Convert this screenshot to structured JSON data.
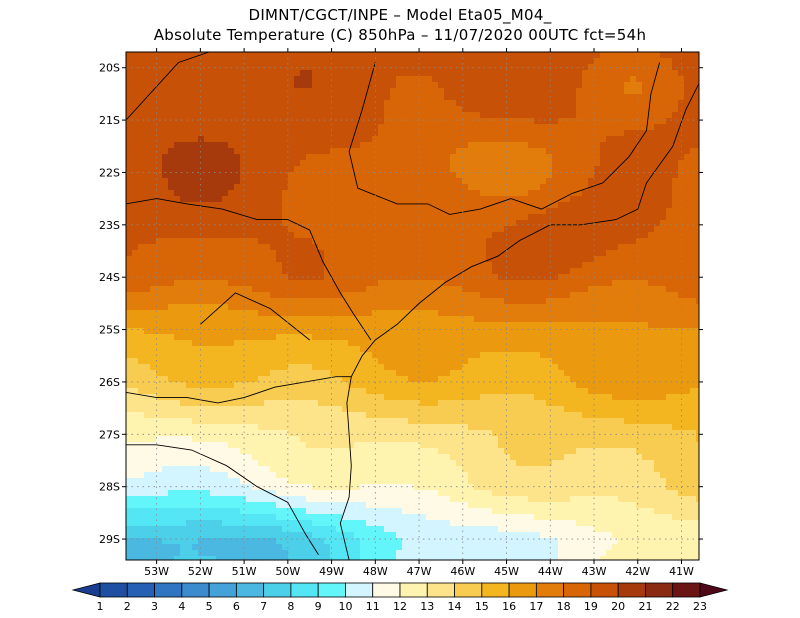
{
  "header": {
    "line1": "DIMNT/CGCT/INPE  –   Model Eta05_M04_",
    "line2": "Absolute Temperature (C) 850hPa  –   11/07/2020 00UTC fct=54h"
  },
  "chart_data": {
    "type": "heatmap",
    "title": "DIMNT/CGCT/INPE – Model Eta05_M04_",
    "subtitle": "Absolute Temperature (C) 850hPa – 11/07/2020 00UTC fct=54h",
    "xlabel": "",
    "ylabel": "",
    "x_ticks": [
      "53W",
      "52W",
      "51W",
      "50W",
      "49W",
      "48W",
      "47W",
      "46W",
      "45W",
      "44W",
      "43W",
      "42W",
      "41W"
    ],
    "y_ticks": [
      "20S",
      "21S",
      "22S",
      "23S",
      "24S",
      "25S",
      "26S",
      "27S",
      "28S",
      "29S"
    ],
    "lon_range": [
      -53.7,
      -40.6
    ],
    "lat_range": [
      -29.4,
      -19.7
    ],
    "grid": true,
    "colorbar": {
      "levels": [
        1,
        2,
        3,
        4,
        5,
        6,
        7,
        8,
        9,
        10,
        11,
        12,
        13,
        14,
        15,
        16,
        17,
        18,
        19,
        20,
        21,
        22,
        23
      ],
      "colors": [
        "#1a3d8f",
        "#1f4fa0",
        "#2660b4",
        "#2f75c2",
        "#3a8ccf",
        "#45a2d8",
        "#4ab8e0",
        "#4ccfe8",
        "#55e6f5",
        "#62f5fa",
        "#d2f5ff",
        "#fffae6",
        "#fff3b0",
        "#fde38a",
        "#f7cc50",
        "#f3b520",
        "#eb9a10",
        "#e27c0a",
        "#d96606",
        "#c75207",
        "#a63a0c",
        "#8a2a12",
        "#6a1416",
        "#4f0818"
      ]
    },
    "field_description_bands": [
      {
        "lat": -20.0,
        "temp": 19.5
      },
      {
        "lat": -22.0,
        "temp": 19.0
      },
      {
        "lat": -24.0,
        "temp": 18.5
      },
      {
        "lat": -25.0,
        "temp": 16.5
      },
      {
        "lat": -26.0,
        "temp": 15.5
      },
      {
        "lat": -27.0,
        "temp": 13.5
      },
      {
        "lat": -28.0,
        "temp": 12.5
      },
      {
        "lat": -29.0,
        "temp": 10.0
      }
    ]
  }
}
